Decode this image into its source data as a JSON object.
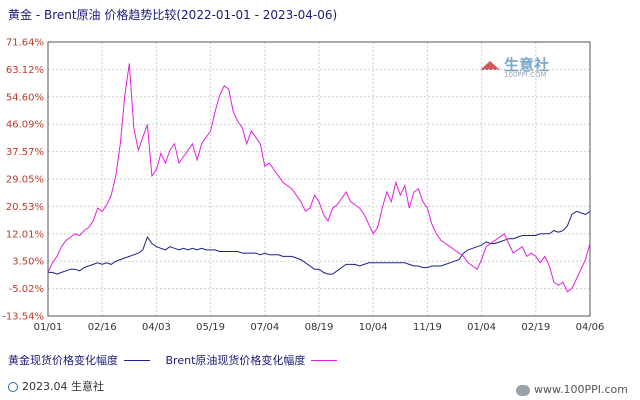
{
  "title": "黄金 - Brent原油 价格趋势比较(2022-01-01 - 2023-04-06)",
  "legend": [
    {
      "label": "黄金现货价格变化幅度",
      "color": "#1f1f8f"
    },
    {
      "label": "Brent原油现货价格变化幅度",
      "color": "#e020e0"
    }
  ],
  "footer": "2023.04 生意社",
  "watermark": "www.100PPI.com",
  "logo_text": "生意社",
  "logo_url": "100PPI.COM",
  "chart_data": {
    "type": "line",
    "title": "黄金 - Brent原油 价格趋势比较(2022-01-01 - 2023-04-06)",
    "ylim": [
      -13.54,
      71.64
    ],
    "yticks": [
      "71.64%",
      "63.12%",
      "54.60%",
      "46.09%",
      "37.57%",
      "29.05%",
      "20.53%",
      "12.01%",
      "3.50%",
      "-5.02%",
      "-13.54%"
    ],
    "xticks": [
      "01/01",
      "02/16",
      "04/03",
      "05/19",
      "07/04",
      "08/19",
      "10/04",
      "11/19",
      "01/04",
      "02/19",
      "04/06"
    ],
    "grid": true,
    "series": [
      {
        "name": "黄金现货价格变化幅度",
        "color": "#1f1f8f",
        "values": [
          0,
          0,
          -0.5,
          0,
          0.5,
          1,
          1,
          0.5,
          1.5,
          2,
          2.5,
          3,
          2.5,
          3,
          2.5,
          3.5,
          4,
          4.5,
          5,
          5.5,
          6,
          7,
          11,
          9,
          8,
          7.5,
          7,
          8,
          7.5,
          7,
          7.5,
          7,
          7.5,
          7,
          7.5,
          7,
          7,
          7,
          6.5,
          6.5,
          6.5,
          6.5,
          6.5,
          6,
          6,
          6,
          6,
          5.5,
          6,
          5.5,
          5.5,
          5.5,
          5,
          5,
          5,
          4.5,
          4,
          3,
          2,
          1,
          1,
          0,
          -0.5,
          -0.5,
          0.5,
          1.5,
          2.5,
          2.5,
          2.5,
          2,
          2.5,
          3,
          3,
          3,
          3,
          3,
          3,
          3,
          3,
          3,
          2.5,
          2,
          2,
          1.5,
          1.5,
          2,
          2,
          2,
          2.5,
          3,
          3.5,
          4,
          6,
          7,
          7.5,
          8,
          8.5,
          9.5,
          9,
          9,
          9.5,
          10,
          10.5,
          10.5,
          11,
          11.5,
          11.5,
          11.5,
          11.5,
          12,
          12,
          12,
          13,
          12.5,
          13,
          14.5,
          18,
          19,
          18.5,
          18,
          19
        ]
      },
      {
        "name": "Brent原油现货价格变化幅度",
        "color": "#e020e0",
        "values": [
          0,
          3,
          5,
          8,
          10,
          11,
          12,
          11.5,
          13,
          14,
          16,
          20,
          19,
          21,
          24,
          30,
          40,
          55,
          65,
          45,
          38,
          42,
          46,
          30,
          32,
          37,
          34,
          38,
          40,
          34,
          36,
          38,
          40,
          35,
          40,
          42,
          44,
          50,
          55,
          58,
          57,
          50,
          47,
          45,
          40,
          44,
          42,
          40,
          33,
          34,
          32,
          30,
          28,
          27,
          26,
          24,
          22,
          19,
          20,
          24,
          22,
          18,
          16,
          20,
          21,
          23,
          25,
          22,
          21,
          20,
          18,
          15,
          12,
          14,
          20,
          25,
          22,
          28,
          24,
          27,
          20,
          25,
          26,
          22,
          20,
          15,
          12,
          10,
          9,
          8,
          7,
          6,
          5,
          3,
          2,
          1,
          4,
          8,
          9,
          10,
          11,
          12,
          9,
          6,
          7,
          8,
          5,
          6,
          5,
          3,
          5,
          2,
          -3,
          -4,
          -3,
          -6,
          -5,
          -2,
          1,
          4,
          9
        ]
      }
    ]
  }
}
